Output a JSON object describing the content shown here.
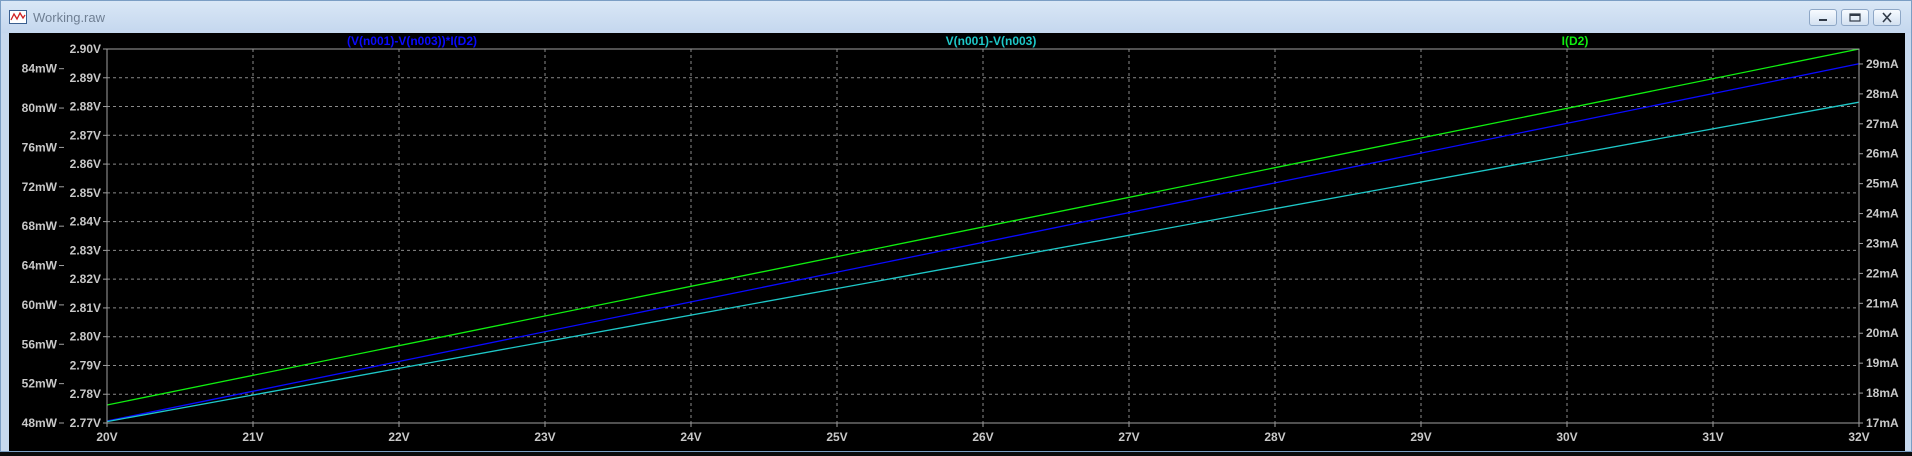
{
  "window": {
    "title": "Working.raw",
    "icons": [
      "waveform-app-icon",
      "minimize-icon",
      "restore-icon",
      "close-icon"
    ]
  },
  "colors": {
    "background": "#000000",
    "axis": "#a0a0a0",
    "grid": "#8a8a8a",
    "tick_text": "#c8c8c8",
    "power": "#0a0aff",
    "voltage": "#1ec8c8",
    "current": "#10ee10"
  },
  "chart_data": {
    "type": "line",
    "title": "",
    "x": [
      20,
      32
    ],
    "x_ticks": [
      "20V",
      "21V",
      "22V",
      "23V",
      "24V",
      "25V",
      "26V",
      "27V",
      "28V",
      "29V",
      "30V",
      "31V",
      "32V"
    ],
    "xlim": [
      20,
      32
    ],
    "xlabel": "",
    "y_left_outer_ticks": [
      "84mW",
      "80mW",
      "76mW",
      "72mW",
      "68mW",
      "64mW",
      "60mW",
      "56mW",
      "52mW",
      "48mW"
    ],
    "y_left_outer_lim": [
      48,
      86
    ],
    "y_left_outer_unit": "mW",
    "y_left_inner_ticks": [
      "2.90V",
      "2.89V",
      "2.88V",
      "2.87V",
      "2.86V",
      "2.85V",
      "2.84V",
      "2.83V",
      "2.82V",
      "2.81V",
      "2.80V",
      "2.79V",
      "2.78V",
      "2.77V"
    ],
    "y_left_inner_lim": [
      2.77,
      2.9
    ],
    "y_left_inner_unit": "V",
    "y_right_ticks": [
      "29mA",
      "28mA",
      "27mA",
      "26mA",
      "25mA",
      "24mA",
      "23mA",
      "22mA",
      "21mA",
      "20mA",
      "19mA",
      "18mA",
      "17mA"
    ],
    "y_right_lim": [
      17,
      29.5
    ],
    "y_right_unit": "mA",
    "grid": true,
    "series": [
      {
        "name": "(V(n001)-V(n003))*I(D2)",
        "axis": "left_outer",
        "x": [
          20,
          32
        ],
        "values": [
          48.2,
          84.5
        ]
      },
      {
        "name": "V(n001)-V(n003)",
        "axis": "left_inner",
        "x": [
          20,
          32
        ],
        "values": [
          2.7705,
          2.8815
        ]
      },
      {
        "name": "I(D2)",
        "axis": "right",
        "x": [
          20,
          32
        ],
        "values": [
          17.6,
          29.5
        ]
      }
    ]
  }
}
